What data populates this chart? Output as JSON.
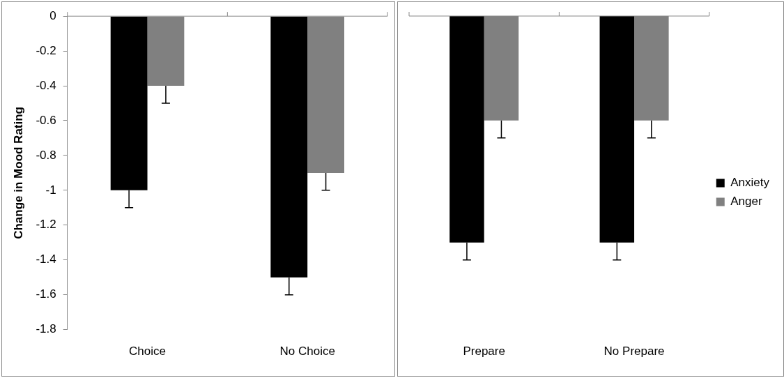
{
  "chart_data": [
    {
      "type": "bar",
      "categories": [
        "Choice",
        "No Choice"
      ],
      "ylabel": "Change in Mood Rating",
      "ylim": [
        -1.8,
        0
      ],
      "yticks": [
        0,
        -0.2,
        -0.4,
        -0.6,
        -0.8,
        -1,
        -1.2,
        -1.4,
        -1.6,
        -1.8
      ],
      "legend": false,
      "series": [
        {
          "color": "#000000",
          "values": [
            -1,
            -1.5
          ],
          "errors": [
            [
              -1.1,
              -1
            ],
            [
              -1.6,
              -1.5
            ]
          ]
        },
        {
          "color": "#808080",
          "values": [
            -0.4,
            -0.9
          ],
          "errors": [
            [
              -0.5,
              -0.4
            ],
            [
              -1,
              -0.9
            ]
          ]
        }
      ]
    },
    {
      "type": "bar",
      "categories": [
        "Prepare",
        "No Prepare"
      ],
      "ylim": [
        -1.8,
        0
      ],
      "tick_labels": "x",
      "legend": "right",
      "series": [
        {
          "name": "Anxiety",
          "color": "#000000",
          "values": [
            -1.3,
            -1.3
          ],
          "errors": [
            [
              -1.4,
              -1.3
            ],
            [
              -1.4,
              -1.3
            ]
          ]
        },
        {
          "name": "Anger",
          "color": "#808080",
          "values": [
            -0.6,
            -0.6
          ],
          "errors": [
            [
              -0.7,
              -0.6
            ],
            [
              -0.7,
              -0.6
            ]
          ]
        }
      ]
    }
  ]
}
